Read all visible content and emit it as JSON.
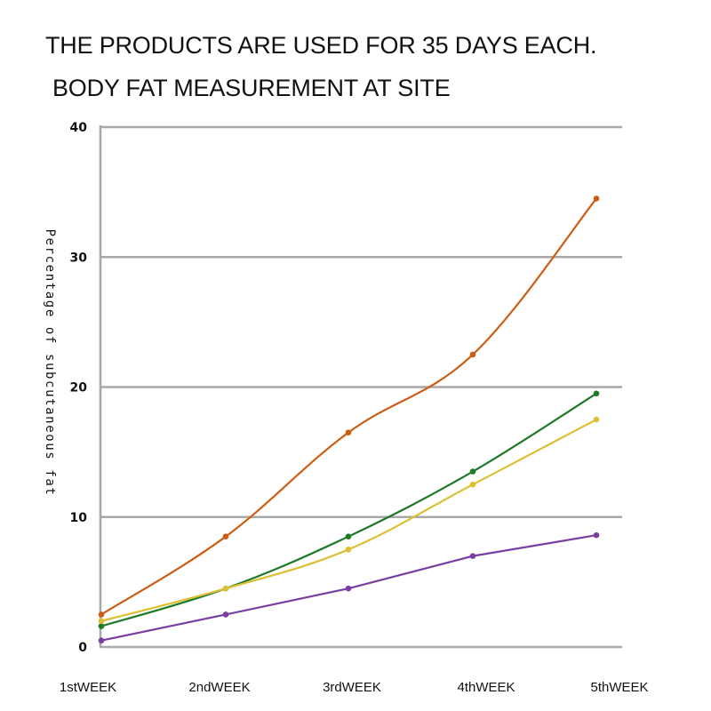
{
  "title": {
    "line1": "THE PRODUCTS ARE USED FOR 35 DAYS EACH.",
    "line2": "BODY FAT MEASUREMENT AT SITE"
  },
  "chart_data": {
    "type": "line",
    "title": "THE PRODUCTS ARE USED FOR 35 DAYS EACH. BODY FAT MEASUREMENT AT SITE",
    "xlabel": "",
    "ylabel": "Percentage of subcutaneous fat",
    "categories": [
      "1stWEEK",
      "2ndWEEK",
      "3rdWEEK",
      "4thWEEK",
      "5thWEEK"
    ],
    "ylim": [
      0,
      40
    ],
    "yticks": [
      0,
      10,
      20,
      30,
      40
    ],
    "grid": true,
    "legend": "none",
    "series": [
      {
        "name": "orange",
        "color": "#cc5e14",
        "values": [
          2.5,
          8.5,
          16.5,
          22.5,
          34.5
        ]
      },
      {
        "name": "green",
        "color": "#1e7a27",
        "values": [
          1.6,
          4.5,
          8.5,
          13.5,
          19.5
        ]
      },
      {
        "name": "yellow",
        "color": "#dcbf32",
        "values": [
          2.0,
          4.5,
          7.5,
          12.5,
          17.5
        ]
      },
      {
        "name": "purple",
        "color": "#7a3ea3",
        "values": [
          0.5,
          2.5,
          4.5,
          7.0,
          8.6
        ]
      }
    ]
  }
}
